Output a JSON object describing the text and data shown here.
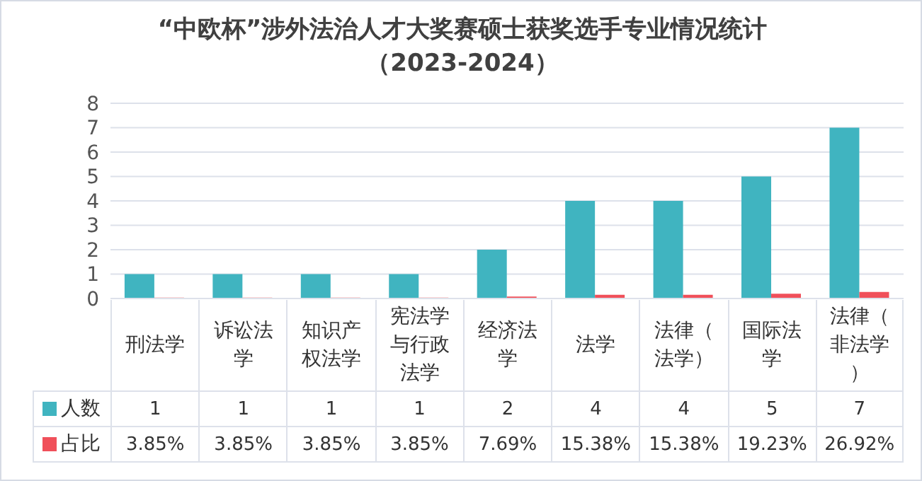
{
  "chart_data": {
    "type": "bar",
    "title": "“中欧杯”涉外法治人才大奖赛硕士获奖选手专业情况统计",
    "subtitle": "（2023-2024）",
    "categories": [
      "刑法学",
      "诉讼法学",
      "知识产权法学",
      "宪法学与行政法学",
      "经济法学",
      "法学",
      "法律（法学）",
      "国际法学",
      "法律（非法学）"
    ],
    "series": [
      {
        "name": "人数",
        "color": "#40b4c0",
        "values": [
          1,
          1,
          1,
          1,
          2,
          4,
          4,
          5,
          7
        ],
        "value_labels": [
          "1",
          "1",
          "1",
          "1",
          "2",
          "4",
          "4",
          "5",
          "7"
        ]
      },
      {
        "name": "占比",
        "color": "#f0505a",
        "values": [
          0.0385,
          0.0385,
          0.0385,
          0.0385,
          0.0769,
          0.1538,
          0.1538,
          0.1923,
          0.2692
        ],
        "value_labels": [
          "3.85%",
          "3.85%",
          "3.85%",
          "3.85%",
          "7.69%",
          "15.38%",
          "15.38%",
          "19.23%",
          "26.92%"
        ]
      }
    ],
    "ylim": [
      0,
      8
    ],
    "yticks": [
      0,
      1,
      2,
      3,
      4,
      5,
      6,
      7,
      8
    ],
    "grid": "y",
    "legend": "bottom"
  }
}
